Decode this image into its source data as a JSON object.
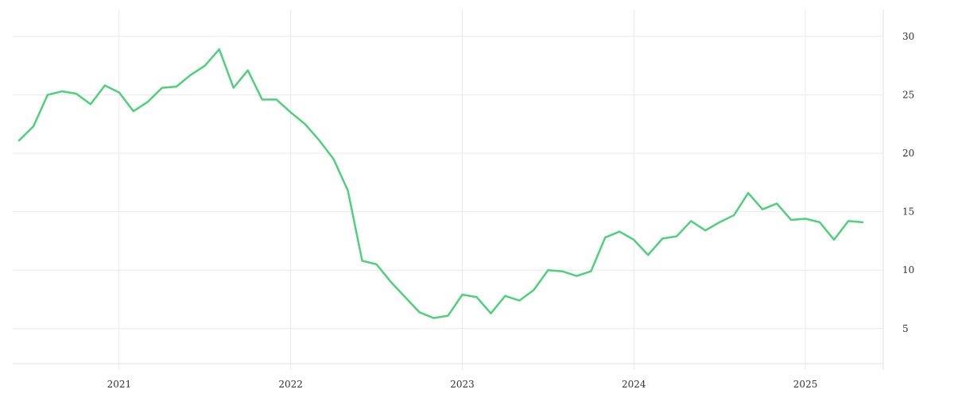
{
  "chart_data": {
    "type": "line",
    "title": "",
    "xlabel": "",
    "ylabel": "",
    "grid": true,
    "y_axis_side": "right",
    "x": [
      "2020-06",
      "2020-07",
      "2020-08",
      "2020-09",
      "2020-10",
      "2020-11",
      "2020-12",
      "2021-01",
      "2021-02",
      "2021-03",
      "2021-04",
      "2021-05",
      "2021-06",
      "2021-07",
      "2021-08",
      "2021-09",
      "2021-10",
      "2021-11",
      "2021-12",
      "2022-01",
      "2022-02",
      "2022-03",
      "2022-04",
      "2022-05",
      "2022-06",
      "2022-07",
      "2022-08",
      "2022-09",
      "2022-10",
      "2022-11",
      "2022-12",
      "2023-01",
      "2023-02",
      "2023-03",
      "2023-04",
      "2023-05",
      "2023-06",
      "2023-07",
      "2023-08",
      "2023-09",
      "2023-10",
      "2023-11",
      "2023-12",
      "2024-01",
      "2024-02",
      "2024-03",
      "2024-04",
      "2024-05",
      "2024-06",
      "2024-07",
      "2024-08",
      "2024-09",
      "2024-10",
      "2024-11",
      "2024-12",
      "2025-01",
      "2025-02",
      "2025-03",
      "2025-04",
      "2025-05"
    ],
    "series": [
      {
        "name": "",
        "color": "#4fd07a",
        "values": [
          21.1,
          22.3,
          25.0,
          25.3,
          25.1,
          24.2,
          25.8,
          25.2,
          23.6,
          24.4,
          25.6,
          25.7,
          26.7,
          27.5,
          28.9,
          25.6,
          27.1,
          24.6,
          24.6,
          23.5,
          22.5,
          21.1,
          19.5,
          16.8,
          10.8,
          10.5,
          9.0,
          7.7,
          6.4,
          5.9,
          6.1,
          7.9,
          7.7,
          6.3,
          7.8,
          7.4,
          8.3,
          10.0,
          9.9,
          9.5,
          9.9,
          12.8,
          13.3,
          12.6,
          11.3,
          12.7,
          12.9,
          14.2,
          13.4,
          14.1,
          14.7,
          16.6,
          15.2,
          15.7,
          14.3,
          14.4,
          14.1,
          12.6,
          14.2,
          14.1
        ]
      }
    ],
    "x_ticks": [
      "2021",
      "2022",
      "2023",
      "2024",
      "2025"
    ],
    "x_tick_dates": [
      "2021-01",
      "2022-01",
      "2023-01",
      "2024-01",
      "2025-01"
    ],
    "y_ticks": [
      5,
      10,
      15,
      20,
      25,
      30
    ],
    "x_range": [
      "2020-06",
      "2025-06"
    ],
    "ylim": [
      2,
      32.3
    ]
  }
}
